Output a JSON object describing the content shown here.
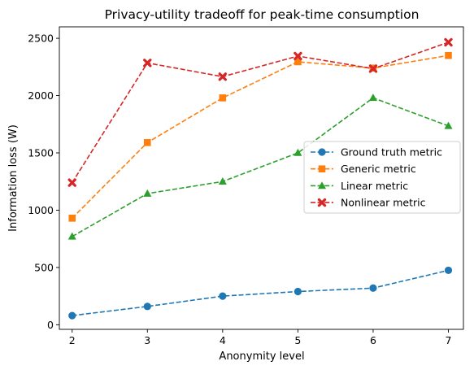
{
  "chart_data": {
    "type": "line",
    "title": "Privacy-utility tradeoff for peak-time consumption",
    "xlabel": "Anonymity level",
    "ylabel": "Information loss (W)",
    "x": [
      2,
      3,
      4,
      5,
      6,
      7
    ],
    "xlim": [
      1.83,
      7.2
    ],
    "ylim": [
      -40,
      2600
    ],
    "xticks": [
      2,
      3,
      4,
      5,
      6,
      7
    ],
    "yticks": [
      0,
      500,
      1000,
      1500,
      2000,
      2500
    ],
    "grid": false,
    "legend_position": "center-right",
    "series": [
      {
        "name": "Ground truth metric",
        "color": "#1f77b4",
        "marker": "circle",
        "linestyle": "dashed",
        "values": [
          80,
          160,
          250,
          290,
          320,
          475
        ]
      },
      {
        "name": "Generic metric",
        "color": "#ff7f0e",
        "marker": "square",
        "linestyle": "dashed",
        "values": [
          930,
          1590,
          1980,
          2295,
          2240,
          2350
        ]
      },
      {
        "name": "Linear metric",
        "color": "#2ca02c",
        "marker": "triangle",
        "linestyle": "dashed",
        "values": [
          770,
          1145,
          1250,
          1500,
          1980,
          1735
        ]
      },
      {
        "name": "Nonlinear metric",
        "color": "#d62728",
        "marker": "x",
        "linestyle": "dashed",
        "values": [
          1240,
          2285,
          2165,
          2345,
          2235,
          2465
        ]
      }
    ]
  }
}
